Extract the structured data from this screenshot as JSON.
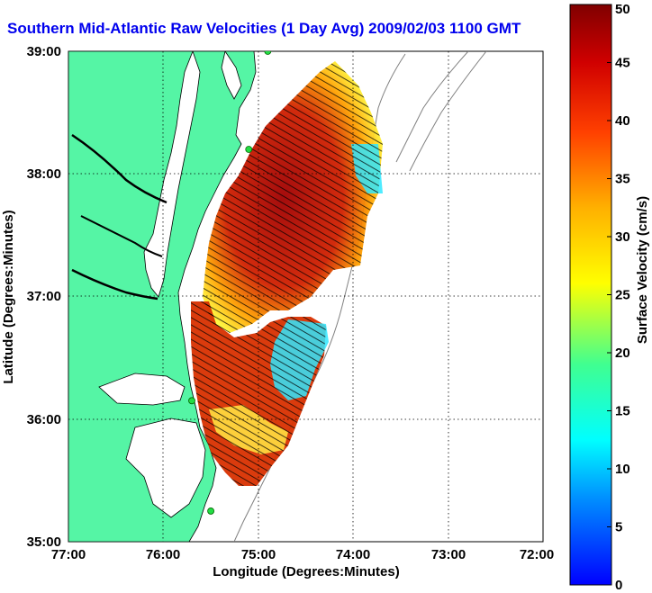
{
  "title": "Southern Mid-Atlantic Raw Velocities (1 Day Avg) 2009/02/03 1100 GMT",
  "axes": {
    "x_label": "Longitude (Degrees:Minutes)",
    "y_label": "Latitude (Degrees:Minutes)",
    "x_ticks": [
      "77:00",
      "76:00",
      "75:00",
      "74:00",
      "73:00",
      "72:00"
    ],
    "y_ticks": [
      "39:00",
      "38:00",
      "37:00",
      "36:00",
      "35:00"
    ]
  },
  "colorbar": {
    "label": "Surface Velocity (cm/s)",
    "ticks": [
      "50",
      "45",
      "40",
      "35",
      "30",
      "25",
      "20",
      "15",
      "10",
      "5",
      "0"
    ],
    "min": 0,
    "max": 50,
    "colormap": [
      "#0000ff",
      "#00a0ff",
      "#00ffff",
      "#40ff80",
      "#ffff00",
      "#ffa000",
      "#ff3000",
      "#d00000",
      "#800000"
    ]
  },
  "colors": {
    "land": "#55f5a5",
    "water": "#ffffff",
    "coastline": "#000000",
    "grid": "#000000",
    "bathymetry": "#808080",
    "title": "#0000ee",
    "station": "#22dd44"
  },
  "chart_data": {
    "type": "map",
    "x_range": [
      -77,
      -72
    ],
    "y_range": [
      35,
      39
    ],
    "grid": true,
    "stations": [
      {
        "lon": -74.9,
        "lat": 39.0
      },
      {
        "lon": -75.1,
        "lat": 38.2
      },
      {
        "lon": -75.7,
        "lat": 36.15
      },
      {
        "lon": -75.5,
        "lat": 35.25
      }
    ]
  }
}
